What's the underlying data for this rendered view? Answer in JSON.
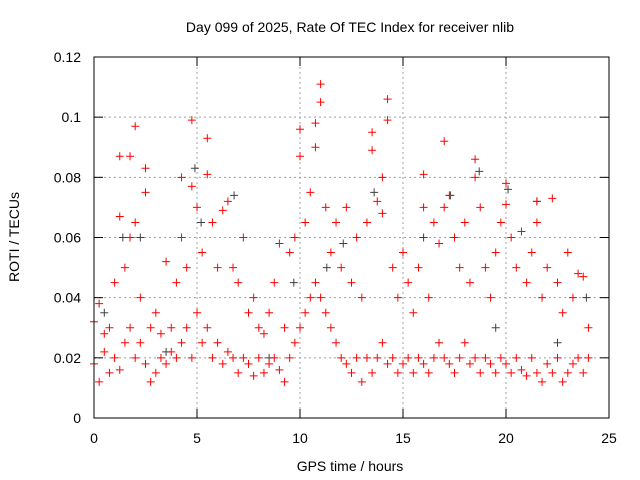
{
  "chart_data": {
    "type": "scatter",
    "title": "Day 099 of 2025, Rate Of TEC Index for receiver nlib",
    "xlabel": "GPS time / hours",
    "ylabel": "ROTI / TECUs",
    "xlim": [
      0,
      25
    ],
    "ylim": [
      0,
      0.12
    ],
    "grid": true,
    "xticks": [
      "0",
      "5",
      "10",
      "15",
      "20",
      "25"
    ],
    "yticks": [
      "0",
      "0.02",
      "0.04",
      "0.06",
      "0.08",
      "0.1",
      "0.12"
    ],
    "series": [
      {
        "name": "gray",
        "color": "#404040",
        "points": [
          [
            0.5,
            0.035
          ],
          [
            2.25,
            0.06
          ],
          [
            4.9,
            0.083
          ],
          [
            6.8,
            0.074
          ],
          [
            13.6,
            0.075
          ],
          [
            17.3,
            0.074
          ],
          [
            20.1,
            0.076
          ],
          [
            21.5,
            0.072
          ],
          [
            11.3,
            0.05
          ],
          [
            9.7,
            0.045
          ],
          [
            3.5,
            0.022
          ],
          [
            8.5,
            0.02
          ],
          [
            16,
            0.06
          ],
          [
            22.5,
            0.025
          ],
          [
            1.4,
            0.06
          ],
          [
            5.2,
            0.065
          ],
          [
            12.1,
            0.058
          ],
          [
            18.7,
            0.082
          ],
          [
            23.9,
            0.04
          ],
          [
            19.5,
            0.03
          ]
        ]
      },
      {
        "name": "red",
        "color": "#ff0000",
        "points": [
          [
            0,
            0.018
          ],
          [
            0,
            0.032
          ],
          [
            0.25,
            0.012
          ],
          [
            0.25,
            0.038
          ],
          [
            0.5,
            0.022
          ],
          [
            0.5,
            0.028
          ],
          [
            0.75,
            0.015
          ],
          [
            0.75,
            0.03
          ],
          [
            1,
            0.02
          ],
          [
            1,
            0.045
          ],
          [
            1.25,
            0.016
          ],
          [
            1.25,
            0.087
          ],
          [
            1.25,
            0.067
          ],
          [
            1.5,
            0.025
          ],
          [
            1.5,
            0.05
          ],
          [
            1.75,
            0.03
          ],
          [
            1.75,
            0.06
          ],
          [
            1.75,
            0.087
          ],
          [
            2,
            0.02
          ],
          [
            2,
            0.097
          ],
          [
            2,
            0.065
          ],
          [
            2.25,
            0.025
          ],
          [
            2.25,
            0.04
          ],
          [
            2.5,
            0.018
          ],
          [
            2.5,
            0.075
          ],
          [
            2.5,
            0.083
          ],
          [
            2.75,
            0.012
          ],
          [
            2.75,
            0.03
          ],
          [
            3,
            0.015
          ],
          [
            3,
            0.035
          ],
          [
            3.25,
            0.02
          ],
          [
            3.25,
            0.028
          ],
          [
            3.5,
            0.018
          ],
          [
            3.5,
            0.052
          ],
          [
            3.75,
            0.022
          ],
          [
            3.75,
            0.03
          ],
          [
            4,
            0.02
          ],
          [
            4,
            0.045
          ],
          [
            4.25,
            0.025
          ],
          [
            4.25,
            0.06
          ],
          [
            4.25,
            0.08
          ],
          [
            4.5,
            0.03
          ],
          [
            4.5,
            0.05
          ],
          [
            4.75,
            0.02
          ],
          [
            4.75,
            0.099
          ],
          [
            4.75,
            0.077
          ],
          [
            5,
            0.035
          ],
          [
            5,
            0.07
          ],
          [
            5.25,
            0.025
          ],
          [
            5.25,
            0.055
          ],
          [
            5.5,
            0.03
          ],
          [
            5.5,
            0.093
          ],
          [
            5.5,
            0.081
          ],
          [
            5.75,
            0.02
          ],
          [
            5.75,
            0.065
          ],
          [
            6,
            0.025
          ],
          [
            6,
            0.05
          ],
          [
            6.25,
            0.018
          ],
          [
            6.25,
            0.069
          ],
          [
            6.5,
            0.022
          ],
          [
            6.5,
            0.072
          ],
          [
            6.75,
            0.02
          ],
          [
            6.75,
            0.05
          ],
          [
            7,
            0.015
          ],
          [
            7,
            0.045
          ],
          [
            7.25,
            0.02
          ],
          [
            7.25,
            0.06
          ],
          [
            7.5,
            0.018
          ],
          [
            7.5,
            0.035
          ],
          [
            7.75,
            0.014
          ],
          [
            7.75,
            0.04
          ],
          [
            8,
            0.02
          ],
          [
            8,
            0.03
          ],
          [
            8.25,
            0.015
          ],
          [
            8.25,
            0.028
          ],
          [
            8.5,
            0.018
          ],
          [
            8.5,
            0.035
          ],
          [
            8.75,
            0.02
          ],
          [
            8.75,
            0.045
          ],
          [
            9,
            0.016
          ],
          [
            9,
            0.058
          ],
          [
            9.25,
            0.012
          ],
          [
            9.25,
            0.03
          ],
          [
            9.5,
            0.02
          ],
          [
            9.5,
            0.055
          ],
          [
            9.75,
            0.025
          ],
          [
            9.75,
            0.06
          ],
          [
            10,
            0.03
          ],
          [
            10,
            0.087
          ],
          [
            10,
            0.096
          ],
          [
            10.25,
            0.035
          ],
          [
            10.25,
            0.065
          ],
          [
            10.5,
            0.04
          ],
          [
            10.5,
            0.075
          ],
          [
            10.75,
            0.045
          ],
          [
            10.75,
            0.098
          ],
          [
            10.75,
            0.09
          ],
          [
            11,
            0.04
          ],
          [
            11,
            0.111
          ],
          [
            11,
            0.105
          ],
          [
            11.25,
            0.035
          ],
          [
            11.25,
            0.07
          ],
          [
            11.5,
            0.03
          ],
          [
            11.5,
            0.055
          ],
          [
            11.75,
            0.025
          ],
          [
            11.75,
            0.065
          ],
          [
            12,
            0.02
          ],
          [
            12,
            0.05
          ],
          [
            12.25,
            0.018
          ],
          [
            12.25,
            0.07
          ],
          [
            12.5,
            0.015
          ],
          [
            12.5,
            0.045
          ],
          [
            12.75,
            0.02
          ],
          [
            12.75,
            0.06
          ],
          [
            13,
            0.012
          ],
          [
            13,
            0.04
          ],
          [
            13.25,
            0.02
          ],
          [
            13.25,
            0.065
          ],
          [
            13.5,
            0.015
          ],
          [
            13.5,
            0.095
          ],
          [
            13.5,
            0.089
          ],
          [
            13.75,
            0.02
          ],
          [
            13.75,
            0.072
          ],
          [
            14,
            0.025
          ],
          [
            14,
            0.08
          ],
          [
            14,
            0.068
          ],
          [
            14.25,
            0.018
          ],
          [
            14.25,
            0.106
          ],
          [
            14.25,
            0.099
          ],
          [
            14.5,
            0.02
          ],
          [
            14.5,
            0.05
          ],
          [
            14.75,
            0.015
          ],
          [
            14.75,
            0.04
          ],
          [
            15,
            0.018
          ],
          [
            15,
            0.055
          ],
          [
            15.25,
            0.02
          ],
          [
            15.25,
            0.045
          ],
          [
            15.5,
            0.015
          ],
          [
            15.5,
            0.035
          ],
          [
            15.75,
            0.02
          ],
          [
            15.75,
            0.05
          ],
          [
            16,
            0.018
          ],
          [
            16,
            0.081
          ],
          [
            16,
            0.07
          ],
          [
            16.25,
            0.015
          ],
          [
            16.25,
            0.04
          ],
          [
            16.5,
            0.02
          ],
          [
            16.5,
            0.065
          ],
          [
            16.75,
            0.025
          ],
          [
            16.75,
            0.058
          ],
          [
            17,
            0.02
          ],
          [
            17,
            0.092
          ],
          [
            17,
            0.07
          ],
          [
            17.25,
            0.018
          ],
          [
            17.25,
            0.074
          ],
          [
            17.5,
            0.015
          ],
          [
            17.5,
            0.06
          ],
          [
            17.75,
            0.02
          ],
          [
            17.75,
            0.05
          ],
          [
            18,
            0.025
          ],
          [
            18,
            0.065
          ],
          [
            18.25,
            0.018
          ],
          [
            18.25,
            0.045
          ],
          [
            18.5,
            0.02
          ],
          [
            18.5,
            0.086
          ],
          [
            18.5,
            0.08
          ],
          [
            18.75,
            0.015
          ],
          [
            18.75,
            0.07
          ],
          [
            19,
            0.02
          ],
          [
            19,
            0.05
          ],
          [
            19.25,
            0.018
          ],
          [
            19.25,
            0.04
          ],
          [
            19.5,
            0.015
          ],
          [
            19.5,
            0.055
          ],
          [
            19.75,
            0.02
          ],
          [
            19.75,
            0.065
          ],
          [
            20,
            0.018
          ],
          [
            20,
            0.078
          ],
          [
            20,
            0.071
          ],
          [
            20.25,
            0.015
          ],
          [
            20.25,
            0.06
          ],
          [
            20.5,
            0.02
          ],
          [
            20.5,
            0.05
          ],
          [
            20.75,
            0.016
          ],
          [
            20.75,
            0.062
          ],
          [
            21,
            0.014
          ],
          [
            21,
            0.045
          ],
          [
            21.25,
            0.02
          ],
          [
            21.25,
            0.055
          ],
          [
            21.5,
            0.015
          ],
          [
            21.5,
            0.072
          ],
          [
            21.5,
            0.065
          ],
          [
            21.75,
            0.012
          ],
          [
            21.75,
            0.04
          ],
          [
            22,
            0.018
          ],
          [
            22,
            0.05
          ],
          [
            22.25,
            0.015
          ],
          [
            22.25,
            0.073
          ],
          [
            22.5,
            0.02
          ],
          [
            22.5,
            0.045
          ],
          [
            22.75,
            0.012
          ],
          [
            22.75,
            0.035
          ],
          [
            23,
            0.015
          ],
          [
            23,
            0.055
          ],
          [
            23.25,
            0.018
          ],
          [
            23.25,
            0.04
          ],
          [
            23.5,
            0.02
          ],
          [
            23.5,
            0.048
          ],
          [
            23.75,
            0.015
          ],
          [
            23.75,
            0.047
          ],
          [
            24,
            0.02
          ],
          [
            24,
            0.03
          ]
        ]
      }
    ]
  }
}
